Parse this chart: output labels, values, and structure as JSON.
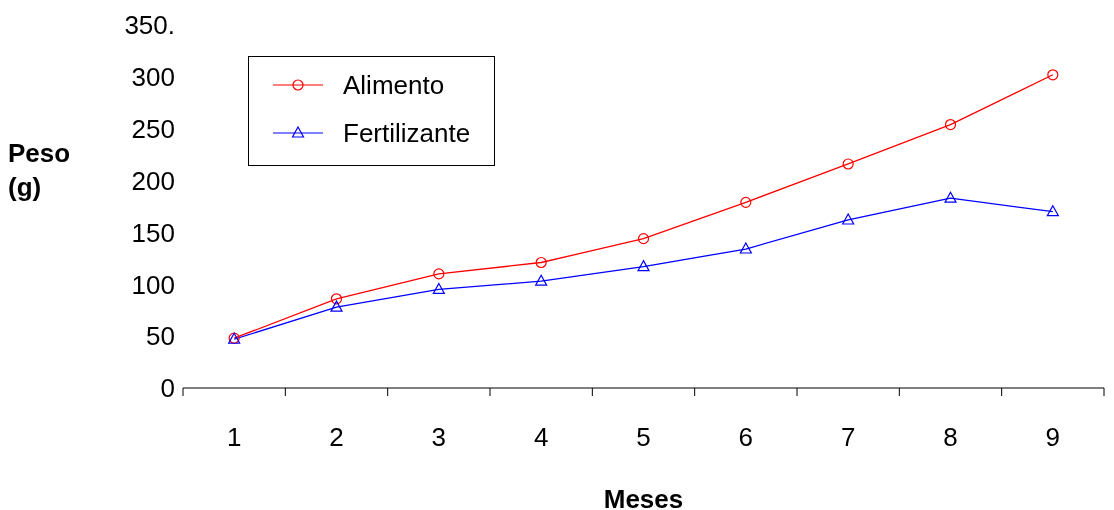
{
  "chart_data": {
    "type": "line",
    "xlabel": "Meses",
    "ylabel": "Peso (g)",
    "categories": [
      "1",
      "2",
      "3",
      "4",
      "5",
      "6",
      "7",
      "8",
      "9"
    ],
    "series": [
      {
        "name": "Alimento",
        "color": "#ff0000",
        "marker": "circle",
        "values": [
          48,
          86,
          110,
          121,
          144,
          179,
          216,
          254,
          302
        ]
      },
      {
        "name": "Fertilizante",
        "color": "#0000ff",
        "marker": "triangle",
        "values": [
          47,
          78,
          95,
          103,
          117,
          134,
          162,
          183,
          170
        ]
      }
    ],
    "ylim": [
      0,
      350
    ],
    "yticks": [
      0,
      50,
      100,
      150,
      200,
      250,
      300,
      {
        "value": 350,
        "label": "350."
      }
    ],
    "grid": false,
    "legend": "top left",
    "line_style": "solid"
  }
}
